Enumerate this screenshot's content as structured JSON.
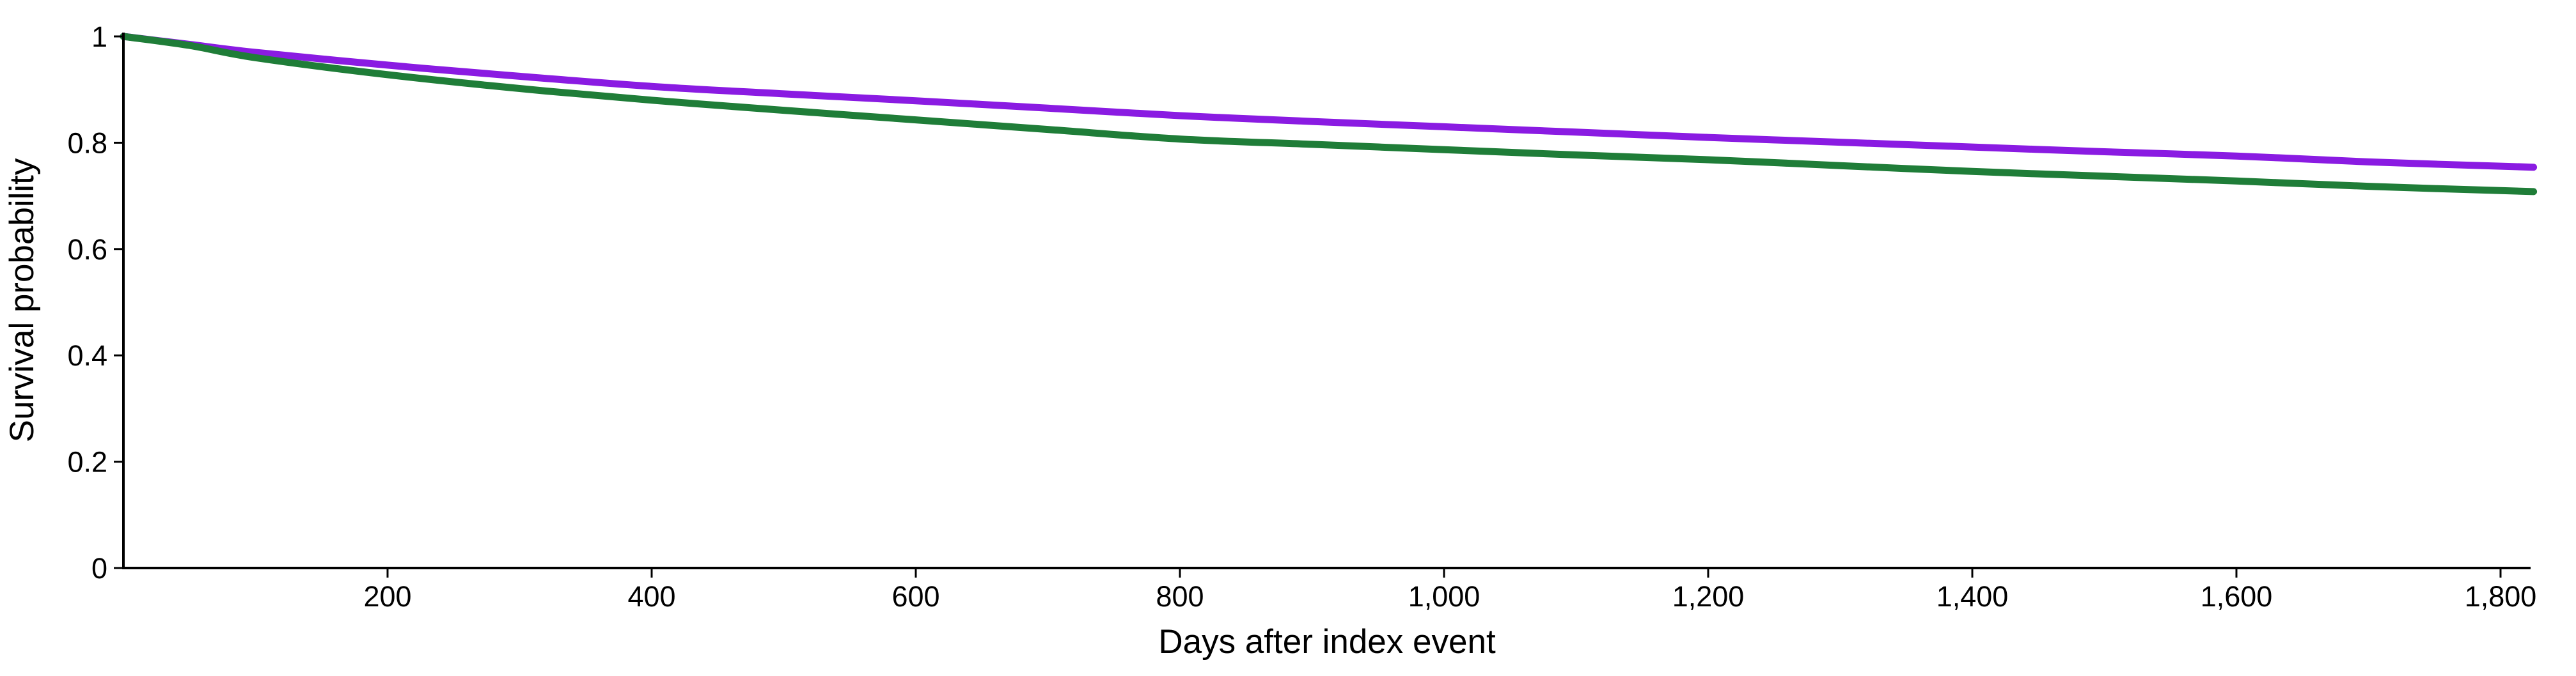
{
  "figure": {
    "background_color": "#ffffff",
    "axis_color": "#000000",
    "text_color": "#000000"
  },
  "chart_data": {
    "type": "line",
    "title": "",
    "xlabel": "Days after index event",
    "ylabel": "Survival probability",
    "grid": false,
    "legend": "none",
    "xlim": [
      0,
      1829
    ],
    "ylim": [
      0,
      1
    ],
    "x_ticks": [
      200,
      400,
      600,
      800,
      1000,
      1200,
      1400,
      1600,
      1800
    ],
    "x_tick_labels": [
      "200",
      "400",
      "600",
      "800",
      "1,000",
      "1,200",
      "1,400",
      "1,600",
      "1,800"
    ],
    "y_ticks": [
      0,
      0.2,
      0.4,
      0.6,
      0.8,
      1
    ],
    "y_tick_labels": [
      "0",
      "0.2",
      "0.4",
      "0.6",
      "0.8",
      "1"
    ],
    "x": [
      0,
      50,
      100,
      200,
      300,
      400,
      500,
      600,
      700,
      800,
      900,
      1000,
      1100,
      1200,
      1300,
      1400,
      1500,
      1600,
      1700,
      1825
    ],
    "series": [
      {
        "name": "purple",
        "color": "#8A1BE2",
        "values": [
          1.0,
          0.985,
          0.97,
          0.946,
          0.925,
          0.906,
          0.892,
          0.879,
          0.865,
          0.851,
          0.84,
          0.83,
          0.82,
          0.81,
          0.801,
          0.792,
          0.783,
          0.775,
          0.764,
          0.754
        ]
      },
      {
        "name": "green",
        "color": "#1F7D38",
        "values": [
          1.0,
          0.983,
          0.96,
          0.928,
          0.902,
          0.88,
          0.861,
          0.843,
          0.825,
          0.807,
          0.797,
          0.787,
          0.777,
          0.768,
          0.757,
          0.746,
          0.737,
          0.728,
          0.718,
          0.708
        ]
      }
    ]
  }
}
